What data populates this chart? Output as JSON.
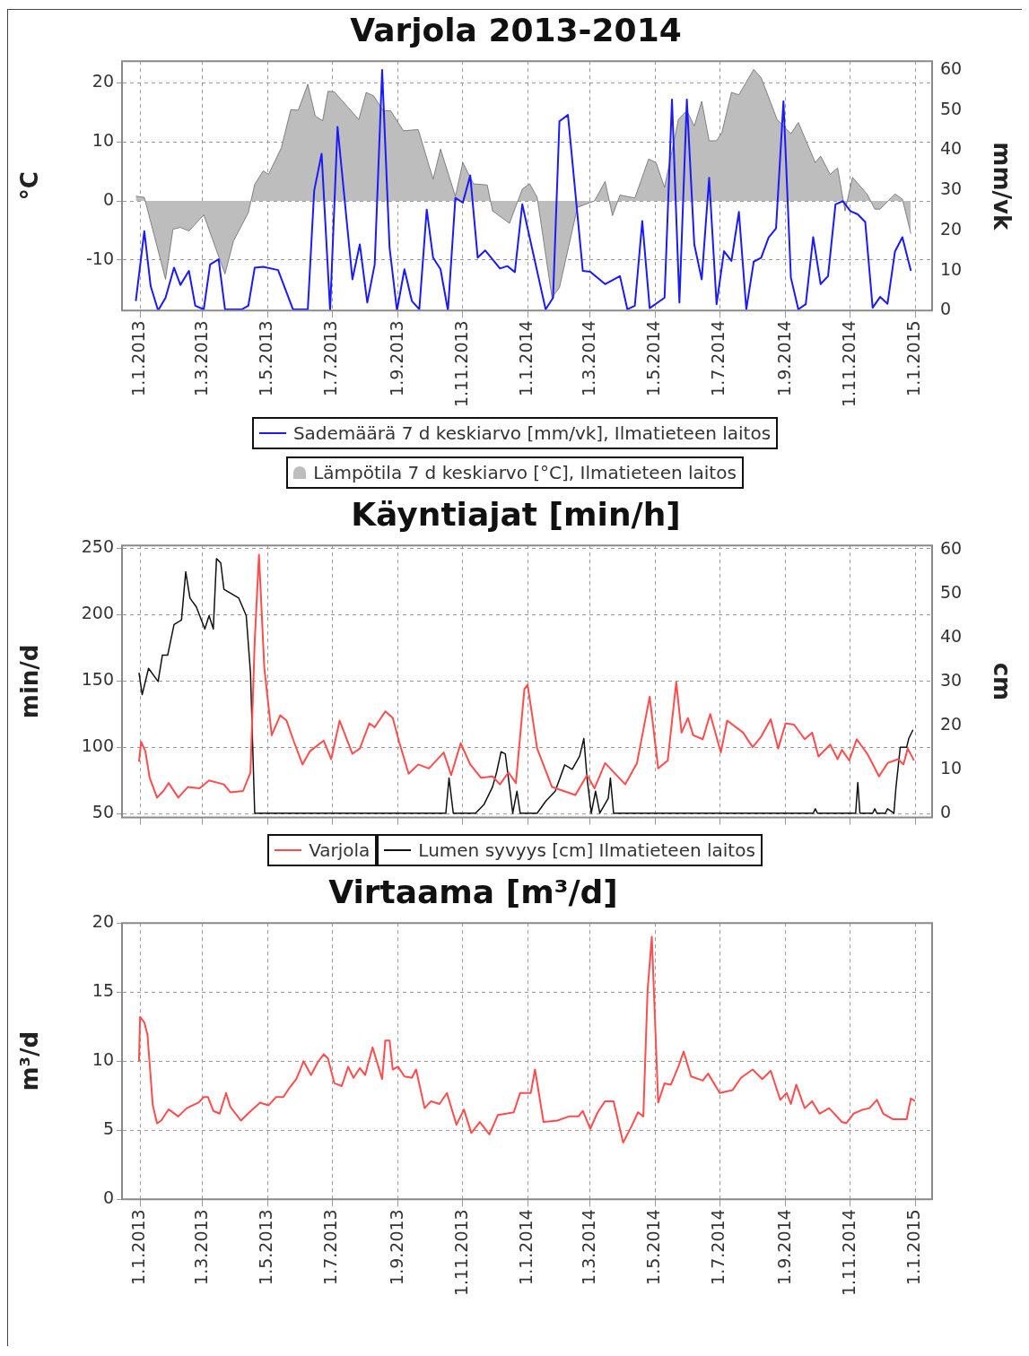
{
  "chart_data": [
    {
      "type": "line",
      "title": "Varjola 2013-2014",
      "ylabel": "°C",
      "y2label": "mm/vk",
      "xlim": [
        "2012-12-15",
        "2015-01-17"
      ],
      "xticks": [
        {
          "value": "2013-01-01",
          "label": "1.1.2013"
        },
        {
          "value": "2013-03-01",
          "label": "1.3.2013"
        },
        {
          "value": "2013-05-01",
          "label": "1.5.2013"
        },
        {
          "value": "2013-07-01",
          "label": "1.7.2013"
        },
        {
          "value": "2013-09-01",
          "label": "1.9.2013"
        },
        {
          "value": "2013-11-01",
          "label": "1.11.2013"
        },
        {
          "value": "2014-01-01",
          "label": "1.1.2014"
        },
        {
          "value": "2014-03-01",
          "label": "1.3.2014"
        },
        {
          "value": "2014-05-01",
          "label": "1.5.2014"
        },
        {
          "value": "2014-07-01",
          "label": "1.7.2014"
        },
        {
          "value": "2014-09-01",
          "label": "1.9.2014"
        },
        {
          "value": "2014-11-01",
          "label": "1.11.2014"
        },
        {
          "value": "2015-01-01",
          "label": "1.1.2015"
        }
      ],
      "ylim": [
        -18.6,
        23.7
      ],
      "yticks": [
        -10,
        0,
        10,
        20
      ],
      "y2lim": [
        0,
        62.2
      ],
      "y2ticks": [
        0,
        10,
        20,
        30,
        40,
        50,
        60
      ],
      "grid": true,
      "legend": "bottom",
      "marker": "none",
      "series": [
        {
          "name": "Sademäärä 7 d keskiarvo [mm/vk], Ilmatieteen laitos",
          "type": "line",
          "axis": "y2",
          "color": "#1a1aff",
          "x": [
            "2012-12-28",
            "2013-01-05",
            "2013-01-11",
            "2013-01-18",
            "2013-01-25",
            "2013-02-02",
            "2013-02-08",
            "2013-02-16",
            "2013-02-22",
            "2013-03-02",
            "2013-03-08",
            "2013-03-16",
            "2013-03-22",
            "2013-04-07",
            "2013-04-13",
            "2013-04-19",
            "2013-04-27",
            "2013-05-11",
            "2013-05-25",
            "2013-06-08",
            "2013-06-14",
            "2013-06-21",
            "2013-06-29",
            "2013-07-06",
            "2013-07-20",
            "2013-07-27",
            "2013-08-03",
            "2013-08-10",
            "2013-08-17",
            "2013-08-24",
            "2013-08-31",
            "2013-09-07",
            "2013-09-14",
            "2013-09-21",
            "2013-09-28",
            "2013-10-04",
            "2013-10-11",
            "2013-10-18",
            "2013-10-25",
            "2013-11-01",
            "2013-11-08",
            "2013-11-15",
            "2013-11-22",
            "2013-12-06",
            "2013-12-13",
            "2013-12-20",
            "2013-12-27",
            "2014-01-18",
            "2014-01-25",
            "2014-01-31",
            "2014-02-08",
            "2014-02-22",
            "2014-03-01",
            "2014-03-15",
            "2014-03-29",
            "2014-04-05",
            "2014-04-12",
            "2014-04-19",
            "2014-04-26",
            "2014-05-10",
            "2014-05-17",
            "2014-05-24",
            "2014-05-31",
            "2014-06-07",
            "2014-06-14",
            "2014-06-21",
            "2014-06-28",
            "2014-07-05",
            "2014-07-12",
            "2014-07-19",
            "2014-07-26",
            "2014-08-02",
            "2014-08-09",
            "2014-08-16",
            "2014-08-23",
            "2014-08-30",
            "2014-09-06",
            "2014-09-13",
            "2014-09-20",
            "2014-09-27",
            "2014-10-04",
            "2014-10-11",
            "2014-10-18",
            "2014-10-25",
            "2014-11-01",
            "2014-11-08",
            "2014-11-15",
            "2014-11-22",
            "2014-11-29",
            "2014-12-06",
            "2014-12-13",
            "2014-12-20",
            "2014-12-28"
          ],
          "values": [
            2.4,
            19.8,
            6.1,
            0,
            3.2,
            10.7,
            6.4,
            9.9,
            1.2,
            0.3,
            11.5,
            12.8,
            0.3,
            0.3,
            1.2,
            10.7,
            10.9,
            10.1,
            0.3,
            0.3,
            29.9,
            39.1,
            0,
            45.8,
            7.8,
            16.5,
            2,
            11.5,
            60,
            15.7,
            0,
            10.3,
            2.4,
            0.3,
            25.2,
            13.2,
            10.3,
            0,
            28.1,
            26.9,
            33.7,
            13.2,
            15,
            10.5,
            11.1,
            9.6,
            26.5,
            0.3,
            3.2,
            47.2,
            48.8,
            9.9,
            9.7,
            6.6,
            8.6,
            0.3,
            1.2,
            22.3,
            0.6,
            3.2,
            52.6,
            2,
            52.6,
            16.5,
            7.8,
            33.1,
            1.6,
            14.8,
            12.4,
            24.6,
            0.3,
            12.2,
            13.2,
            18.2,
            20.5,
            52.2,
            8.2,
            0.3,
            1.6,
            18.3,
            6.6,
            8.6,
            26.5,
            27.3,
            24.8,
            24,
            22.1,
            0.7,
            3.4,
            1.7,
            14.7,
            18.3,
            9.9
          ]
        },
        {
          "name": "Lämpötila 7 d keskiarvo [°C], Ilmatieteen laitos",
          "type": "area",
          "color": "#bdbdbd",
          "x": [
            "2012-12-28",
            "2013-01-05",
            "2013-01-25",
            "2013-02-01",
            "2013-02-08",
            "2013-02-16",
            "2013-03-02",
            "2013-03-22",
            "2013-03-30",
            "2013-04-13",
            "2013-04-19",
            "2013-04-27",
            "2013-05-02",
            "2013-05-14",
            "2013-05-23",
            "2013-05-30",
            "2013-06-08",
            "2013-06-15",
            "2013-06-22",
            "2013-06-27",
            "2013-07-03",
            "2013-07-26",
            "2013-08-02",
            "2013-08-09",
            "2013-08-18",
            "2013-08-25",
            "2013-09-06",
            "2013-09-20",
            "2013-10-04",
            "2013-10-11",
            "2013-10-25",
            "2013-11-01",
            "2013-11-11",
            "2013-11-24",
            "2013-11-29",
            "2013-12-15",
            "2013-12-27",
            "2014-01-03",
            "2014-01-10",
            "2014-01-24",
            "2014-01-31",
            "2014-02-17",
            "2014-03-05",
            "2014-03-15",
            "2014-03-22",
            "2014-03-29",
            "2014-04-12",
            "2014-04-25",
            "2014-05-02",
            "2014-05-10",
            "2014-05-23",
            "2014-05-31",
            "2014-06-07",
            "2014-06-14",
            "2014-06-21",
            "2014-06-28",
            "2014-07-03",
            "2014-07-12",
            "2014-07-19",
            "2014-08-02",
            "2014-08-09",
            "2014-08-24",
            "2014-09-06",
            "2014-09-13",
            "2014-09-29",
            "2014-10-04",
            "2014-10-13",
            "2014-10-20",
            "2014-10-27",
            "2014-11-03",
            "2014-11-17",
            "2014-11-24",
            "2014-11-29",
            "2014-12-13",
            "2014-12-20",
            "2014-12-28"
          ],
          "values": [
            0.8,
            0.6,
            -13.3,
            -4.8,
            -4.5,
            -5.1,
            -2.4,
            -12.4,
            -6.8,
            -2,
            2.8,
            5.1,
            4.5,
            9,
            15.5,
            15.4,
            19.8,
            14.4,
            13.6,
            18.6,
            18.5,
            13.8,
            18.4,
            17.8,
            15.3,
            15.3,
            11.9,
            12.1,
            3.7,
            8.8,
            0.8,
            6.5,
            2.9,
            2.7,
            -1.7,
            -3.8,
            2,
            2.9,
            0.6,
            -16.4,
            -14.7,
            -1.1,
            0,
            3.3,
            -2.5,
            1,
            0.5,
            7.1,
            6.5,
            2.3,
            13.8,
            15.3,
            12.7,
            16.9,
            10.2,
            10.2,
            11.6,
            18.4,
            18,
            22.3,
            20.9,
            13.8,
            11.4,
            13.3,
            6.5,
            7.6,
            4.5,
            5.6,
            -1.7,
            4,
            1.1,
            -1.4,
            -1.4,
            1.2,
            0.3,
            -5.6
          ]
        }
      ]
    },
    {
      "type": "line",
      "title": "Käyntiajat [min/h]",
      "ylabel": "min/d",
      "y2label": "cm",
      "xlim": [
        "2012-12-15",
        "2015-01-17"
      ],
      "xticks": [
        {
          "value": "2013-01-01",
          "label": null
        },
        {
          "value": "2013-03-01",
          "label": null
        },
        {
          "value": "2013-05-01",
          "label": null
        },
        {
          "value": "2013-07-01",
          "label": null
        },
        {
          "value": "2013-09-01",
          "label": null
        },
        {
          "value": "2013-11-01",
          "label": null
        },
        {
          "value": "2014-01-01",
          "label": null
        },
        {
          "value": "2014-03-01",
          "label": null
        },
        {
          "value": "2014-05-01",
          "label": null
        },
        {
          "value": "2014-07-01",
          "label": null
        },
        {
          "value": "2014-09-01",
          "label": null
        },
        {
          "value": "2014-11-01",
          "label": null
        },
        {
          "value": "2015-01-01",
          "label": null
        }
      ],
      "ylim": [
        47,
        252
      ],
      "yticks": [
        50,
        100,
        150,
        200,
        250
      ],
      "y2lim": [
        -1,
        61
      ],
      "y2ticks": [
        0,
        10,
        20,
        30,
        40,
        50,
        60
      ],
      "grid": true,
      "legend": "bottom",
      "marker": "none",
      "tick_labels": "y",
      "series": [
        {
          "name": "Varjola",
          "color": "#ff4d4d",
          "x": [
            "2012-12-31",
            "2013-01-02",
            "2013-01-06",
            "2013-01-10",
            "2013-01-17",
            "2013-01-23",
            "2013-01-28",
            "2013-02-06",
            "2013-02-15",
            "2013-02-26",
            "2013-03-07",
            "2013-03-21",
            "2013-03-27",
            "2013-04-08",
            "2013-04-15",
            "2013-04-19",
            "2013-04-23",
            "2013-04-28",
            "2013-05-05",
            "2013-05-13",
            "2013-05-19",
            "2013-05-26",
            "2013-06-03",
            "2013-06-10",
            "2013-06-23",
            "2013-06-30",
            "2013-07-08",
            "2013-07-20",
            "2013-07-27",
            "2013-08-05",
            "2013-08-10",
            "2013-08-20",
            "2013-08-27",
            "2013-09-02",
            "2013-09-11",
            "2013-09-20",
            "2013-09-30",
            "2013-10-14",
            "2013-10-21",
            "2013-10-30",
            "2013-11-08",
            "2013-11-18",
            "2013-11-29",
            "2013-12-06",
            "2013-12-14",
            "2013-12-21",
            "2013-12-29",
            "2014-01-01",
            "2014-01-10",
            "2014-01-24",
            "2014-02-15",
            "2014-02-26",
            "2014-03-05",
            "2014-03-15",
            "2014-04-03",
            "2014-04-14",
            "2014-04-26",
            "2014-05-04",
            "2014-05-13",
            "2014-05-21",
            "2014-05-26",
            "2014-06-01",
            "2014-06-06",
            "2014-06-15",
            "2014-06-22",
            "2014-07-02",
            "2014-07-08",
            "2014-07-23",
            "2014-08-01",
            "2014-08-09",
            "2014-08-18",
            "2014-08-25",
            "2014-09-01",
            "2014-09-09",
            "2014-09-19",
            "2014-09-26",
            "2014-10-02",
            "2014-10-13",
            "2014-10-20",
            "2014-10-24",
            "2014-10-31",
            "2014-11-07",
            "2014-11-17",
            "2014-11-28",
            "2014-12-06",
            "2014-12-16",
            "2014-12-21",
            "2014-12-25",
            "2014-12-31"
          ],
          "values": [
            89,
            104,
            97,
            77,
            62,
            67,
            73,
            62,
            70,
            69,
            75,
            72,
            66,
            67,
            81,
            180,
            245,
            160,
            109,
            124,
            120,
            104,
            87,
            97,
            105,
            91,
            120,
            95,
            99,
            118,
            115,
            127,
            122,
            104,
            80,
            87,
            84,
            96,
            79,
            103,
            87,
            77,
            78,
            72,
            81,
            73,
            144,
            147,
            99,
            70,
            64,
            79,
            69,
            88,
            72,
            88,
            138,
            84,
            90,
            149,
            111,
            122,
            109,
            106,
            125,
            96,
            120,
            111,
            100,
            108,
            121,
            99,
            118,
            117,
            106,
            111,
            93,
            102,
            91,
            98,
            90,
            106,
            95,
            78,
            88,
            91,
            87,
            99,
            90
          ]
        },
        {
          "name": "Lumen syvyys [cm] Ilmatieteen laitos",
          "color": "#111111",
          "axis": "y2",
          "x": [
            "2012-12-31",
            "2013-01-03",
            "2013-01-09",
            "2013-01-18",
            "2013-01-22",
            "2013-01-27",
            "2013-02-02",
            "2013-02-09",
            "2013-02-13",
            "2013-02-17",
            "2013-02-23",
            "2013-03-03",
            "2013-03-07",
            "2013-03-11",
            "2013-03-14",
            "2013-03-18",
            "2013-03-21",
            "2013-04-04",
            "2013-04-11",
            "2013-04-15",
            "2013-04-19",
            "2013-10-16",
            "2013-10-19",
            "2013-10-23",
            "2013-11-13",
            "2013-11-21",
            "2013-11-29",
            "2013-12-03",
            "2013-12-07",
            "2013-12-11",
            "2013-12-15",
            "2013-12-18",
            "2013-12-22",
            "2013-12-25",
            "2014-01-10",
            "2014-01-18",
            "2014-01-27",
            "2014-02-05",
            "2014-02-12",
            "2014-02-19",
            "2014-02-23",
            "2014-02-26",
            "2014-03-02",
            "2014-03-06",
            "2014-03-10",
            "2014-03-18",
            "2014-03-20",
            "2014-03-23",
            "2014-09-27",
            "2014-09-29",
            "2014-10-01",
            "2014-11-06",
            "2014-11-08",
            "2014-11-10",
            "2014-11-22",
            "2014-11-24",
            "2014-11-26",
            "2014-12-04",
            "2014-12-06",
            "2014-12-12",
            "2014-12-14",
            "2014-12-18",
            "2014-12-24",
            "2014-12-26",
            "2014-12-30"
          ],
          "values": [
            32,
            27,
            33,
            30,
            36,
            36,
            43,
            44,
            55,
            49,
            47,
            42,
            45,
            42,
            58,
            57,
            51,
            49,
            45,
            32,
            0,
            0,
            8,
            0,
            0,
            2,
            6,
            9.5,
            14,
            13.5,
            6,
            0,
            5,
            0,
            0,
            2.7,
            5,
            11,
            10,
            13,
            17,
            8,
            0,
            5,
            0,
            3.4,
            8,
            0,
            0,
            1,
            0,
            0,
            7,
            0,
            0,
            1,
            0,
            0,
            1,
            0,
            6,
            15,
            15,
            17,
            19
          ]
        }
      ]
    },
    {
      "type": "line",
      "title": "Virtaama [m³/d]",
      "ylabel": "m³/d",
      "xlim": [
        "2012-12-15",
        "2015-01-17"
      ],
      "xticks": [
        {
          "value": "2013-01-01",
          "label": "1.1.2013"
        },
        {
          "value": "2013-03-01",
          "label": "1.3.2013"
        },
        {
          "value": "2013-05-01",
          "label": "1.5.2013"
        },
        {
          "value": "2013-07-01",
          "label": "1.7.2013"
        },
        {
          "value": "2013-09-01",
          "label": "1.9.2013"
        },
        {
          "value": "2013-11-01",
          "label": "1.11.2013"
        },
        {
          "value": "2014-01-01",
          "label": "1.1.2014"
        },
        {
          "value": "2014-03-01",
          "label": "1.3.2014"
        },
        {
          "value": "2014-05-01",
          "label": "1.5.2014"
        },
        {
          "value": "2014-07-01",
          "label": "1.7.2014"
        },
        {
          "value": "2014-09-01",
          "label": "1.9.2014"
        },
        {
          "value": "2014-11-01",
          "label": "1.11.2014"
        },
        {
          "value": "2015-01-01",
          "label": "1.1.2015"
        }
      ],
      "ylim": [
        0,
        20
      ],
      "yticks": [
        0,
        5,
        10,
        15,
        20
      ],
      "grid": true,
      "marker": "none",
      "series": [
        {
          "color": "#ff4d4d",
          "x": [
            "2012-12-31",
            "2013-01-01",
            "2013-01-05",
            "2013-01-08",
            "2013-01-13",
            "2013-01-17",
            "2013-01-21",
            "2013-01-26",
            "2013-01-28",
            "2013-02-06",
            "2013-02-14",
            "2013-02-25",
            "2013-03-02",
            "2013-03-06",
            "2013-03-11",
            "2013-03-17",
            "2013-03-23",
            "2013-03-27",
            "2013-04-06",
            "2013-04-14",
            "2013-04-24",
            "2013-05-02",
            "2013-05-09",
            "2013-05-16",
            "2013-05-22",
            "2013-05-28",
            "2013-06-01",
            "2013-06-04",
            "2013-06-11",
            "2013-06-18",
            "2013-06-23",
            "2013-06-27",
            "2013-07-03",
            "2013-07-10",
            "2013-07-16",
            "2013-07-21",
            "2013-07-27",
            "2013-08-01",
            "2013-08-08",
            "2013-08-17",
            "2013-08-20",
            "2013-08-24",
            "2013-08-27",
            "2013-09-01",
            "2013-09-07",
            "2013-09-14",
            "2013-09-18",
            "2013-09-26",
            "2013-10-02",
            "2013-10-10",
            "2013-10-17",
            "2013-10-26",
            "2013-11-02",
            "2013-11-09",
            "2013-11-17",
            "2013-11-26",
            "2013-12-04",
            "2013-12-12",
            "2013-12-19",
            "2013-12-25",
            "2014-01-04",
            "2014-01-08",
            "2014-01-16",
            "2014-01-29",
            "2014-02-09",
            "2014-02-18",
            "2014-02-22",
            "2014-03-01",
            "2014-03-08",
            "2014-03-15",
            "2014-03-23",
            "2014-04-01",
            "2014-04-09",
            "2014-04-15",
            "2014-04-20",
            "2014-04-24",
            "2014-04-28",
            "2014-05-01",
            "2014-05-04",
            "2014-05-10",
            "2014-05-16",
            "2014-05-23",
            "2014-05-28",
            "2014-06-04",
            "2014-06-15",
            "2014-06-20",
            "2014-07-01",
            "2014-07-13",
            "2014-07-21",
            "2014-08-01",
            "2014-08-10",
            "2014-08-18",
            "2014-08-27",
            "2014-09-02",
            "2014-09-06",
            "2014-09-11",
            "2014-09-19",
            "2014-09-26",
            "2014-10-03",
            "2014-10-12",
            "2014-10-24",
            "2014-10-28",
            "2014-11-04",
            "2014-11-13",
            "2014-11-19",
            "2014-11-26",
            "2014-12-02",
            "2014-12-11",
            "2014-12-24",
            "2014-12-28",
            "2015-01-01"
          ],
          "values": [
            10,
            13.2,
            12.8,
            11.9,
            6.8,
            5.5,
            5.7,
            6.3,
            6.5,
            6,
            6.6,
            7,
            7.4,
            7.4,
            6.4,
            6.2,
            7.7,
            6.7,
            5.7,
            6.3,
            7,
            6.8,
            7.4,
            7.4,
            8.1,
            8.7,
            9.4,
            10,
            9,
            10,
            10.5,
            10.2,
            8.4,
            8.2,
            9.6,
            8.8,
            9.5,
            9,
            11,
            8.7,
            11.5,
            11.5,
            9.4,
            9.6,
            8.9,
            8.8,
            9.4,
            6.6,
            7.1,
            6.9,
            7.7,
            5.4,
            6.5,
            4.8,
            5.6,
            4.7,
            6.1,
            6.2,
            6.3,
            7.7,
            7.7,
            9.4,
            5.6,
            5.7,
            6,
            6,
            6.4,
            5.1,
            6.3,
            7.1,
            7.1,
            4.1,
            5.3,
            6.3,
            6,
            15.1,
            19,
            13,
            7,
            8.4,
            8.3,
            9.6,
            10.7,
            8.9,
            8.6,
            9.1,
            7.7,
            7.9,
            8.8,
            9.4,
            8.7,
            9.3,
            7.2,
            7.7,
            6.9,
            8.3,
            6.6,
            7.1,
            6.2,
            6.6,
            5.6,
            5.5,
            6.2,
            6.5,
            6.6,
            7.2,
            6.2,
            5.8,
            5.8,
            7.3,
            7.1
          ]
        }
      ]
    }
  ]
}
